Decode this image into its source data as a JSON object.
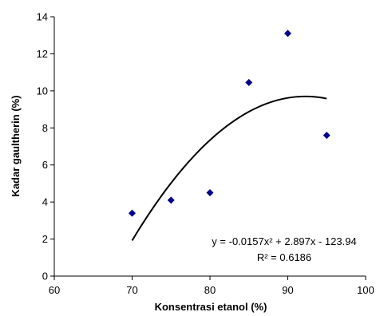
{
  "chart_data": {
    "type": "scatter",
    "xlabel": "Konsentrasi etanol (%)",
    "ylabel": "Kadar gaultherin (%)",
    "xlim": [
      60,
      100
    ],
    "ylim": [
      0,
      14
    ],
    "xticks": [
      60,
      70,
      80,
      90,
      100
    ],
    "yticks": [
      0,
      2,
      4,
      6,
      8,
      10,
      12,
      14
    ],
    "x_tick_labels": [
      "60",
      "70",
      "80",
      "90",
      "100"
    ],
    "y_tick_labels": [
      "0",
      "2",
      "4",
      "6",
      "8",
      "10",
      "12",
      "14"
    ],
    "grid": false,
    "legend": "none",
    "marker_color": "#00008B",
    "series": [
      {
        "x": [
          70,
          75,
          80,
          85,
          90,
          95
        ],
        "y": [
          3.4,
          4.1,
          4.5,
          10.45,
          13.1,
          7.6
        ]
      }
    ],
    "trendline": {
      "type": "polynomial",
      "a": -0.0157,
      "b": 2.897,
      "c": -123.94,
      "x_range": [
        70,
        95
      ],
      "color": "#000000"
    },
    "annotations": {
      "equation": "y = -0.0157x² + 2.897x - 123.94",
      "r_squared": "R² = 0.6186"
    }
  }
}
